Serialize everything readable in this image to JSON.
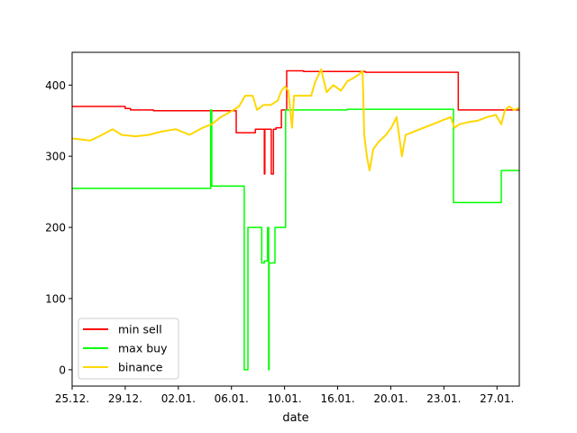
{
  "chart_data": {
    "type": "line",
    "title": "",
    "xlabel": "date",
    "ylabel": "",
    "xticks": [
      "25.12.",
      "29.12.",
      "02.01.",
      "06.01.",
      "10.01.",
      "16.01.",
      "20.01.",
      "23.01.",
      "27.01."
    ],
    "x_units": "tick index (dates are unevenly spaced; tick k shows xticks[k])",
    "xlim": [
      0,
      8.42
    ],
    "ylim": [
      -23,
      446
    ],
    "yticks": [
      0,
      100,
      200,
      300,
      400
    ],
    "grid": false,
    "legend_position": "lower-left",
    "series": [
      {
        "name": "min sell",
        "color": "#ff0000",
        "points": [
          [
            0,
            370
          ],
          [
            1.0,
            370
          ],
          [
            1.0,
            367
          ],
          [
            1.1,
            367
          ],
          [
            1.1,
            365
          ],
          [
            1.53,
            365
          ],
          [
            1.53,
            364
          ],
          [
            3.09,
            364
          ],
          [
            3.09,
            333
          ],
          [
            3.45,
            333
          ],
          [
            3.45,
            338
          ],
          [
            3.62,
            338
          ],
          [
            3.62,
            275
          ],
          [
            3.63,
            275
          ],
          [
            3.63,
            338
          ],
          [
            3.75,
            338
          ],
          [
            3.75,
            275
          ],
          [
            3.79,
            275
          ],
          [
            3.79,
            338
          ],
          [
            3.84,
            338
          ],
          [
            3.84,
            340
          ],
          [
            3.94,
            340
          ],
          [
            3.94,
            365
          ],
          [
            4.04,
            365
          ],
          [
            4.04,
            420
          ],
          [
            4.36,
            420
          ],
          [
            4.36,
            419
          ],
          [
            5.52,
            419
          ],
          [
            5.52,
            418
          ],
          [
            7.27,
            418
          ],
          [
            7.27,
            365
          ],
          [
            8.42,
            365
          ]
        ]
      },
      {
        "name": "max buy",
        "color": "#00ff00",
        "points": [
          [
            0,
            255
          ],
          [
            2.61,
            255
          ],
          [
            2.61,
            365
          ],
          [
            2.63,
            365
          ],
          [
            2.63,
            258
          ],
          [
            3.24,
            258
          ],
          [
            3.24,
            0
          ],
          [
            3.31,
            0
          ],
          [
            3.31,
            200
          ],
          [
            3.57,
            200
          ],
          [
            3.57,
            150
          ],
          [
            3.62,
            150
          ],
          [
            3.62,
            153
          ],
          [
            3.68,
            153
          ],
          [
            3.68,
            200
          ],
          [
            3.7,
            200
          ],
          [
            3.7,
            0
          ],
          [
            3.71,
            0
          ],
          [
            3.71,
            150
          ],
          [
            3.82,
            150
          ],
          [
            3.82,
            200
          ],
          [
            4.02,
            200
          ],
          [
            4.02,
            365
          ],
          [
            5.18,
            365
          ],
          [
            5.18,
            366
          ],
          [
            7.18,
            366
          ],
          [
            7.18,
            235
          ],
          [
            8.08,
            235
          ],
          [
            8.08,
            280
          ],
          [
            8.42,
            280
          ]
        ]
      },
      {
        "name": "binance",
        "color": "#ffd700",
        "points": [
          [
            0,
            325
          ],
          [
            0.34,
            322
          ],
          [
            0.51,
            328
          ],
          [
            0.76,
            338
          ],
          [
            0.93,
            330
          ],
          [
            1.19,
            328
          ],
          [
            1.44,
            330
          ],
          [
            1.7,
            335
          ],
          [
            1.95,
            338
          ],
          [
            2.21,
            330
          ],
          [
            2.46,
            340
          ],
          [
            2.63,
            345
          ],
          [
            2.8,
            355
          ],
          [
            2.97,
            362
          ],
          [
            3.14,
            370
          ],
          [
            3.26,
            385
          ],
          [
            3.4,
            385
          ],
          [
            3.48,
            365
          ],
          [
            3.6,
            372
          ],
          [
            3.74,
            372
          ],
          [
            3.87,
            378
          ],
          [
            3.94,
            392
          ],
          [
            4.01,
            398
          ],
          [
            4.07,
            392
          ],
          [
            4.14,
            340
          ],
          [
            4.18,
            385
          ],
          [
            4.33,
            385
          ],
          [
            4.5,
            385
          ],
          [
            4.58,
            405
          ],
          [
            4.69,
            422
          ],
          [
            4.79,
            390
          ],
          [
            4.92,
            400
          ],
          [
            5.06,
            392
          ],
          [
            5.18,
            405
          ],
          [
            5.3,
            410
          ],
          [
            5.4,
            415
          ],
          [
            5.47,
            420
          ],
          [
            5.5,
            330
          ],
          [
            5.55,
            300
          ],
          [
            5.6,
            280
          ],
          [
            5.67,
            310
          ],
          [
            5.77,
            320
          ],
          [
            5.91,
            330
          ],
          [
            6.01,
            340
          ],
          [
            6.11,
            355
          ],
          [
            6.21,
            300
          ],
          [
            6.28,
            330
          ],
          [
            6.45,
            335
          ],
          [
            6.62,
            340
          ],
          [
            6.79,
            345
          ],
          [
            6.96,
            350
          ],
          [
            7.13,
            355
          ],
          [
            7.2,
            340
          ],
          [
            7.3,
            345
          ],
          [
            7.47,
            348
          ],
          [
            7.64,
            350
          ],
          [
            7.81,
            355
          ],
          [
            7.98,
            358
          ],
          [
            8.08,
            345
          ],
          [
            8.15,
            365
          ],
          [
            8.23,
            370
          ],
          [
            8.32,
            365
          ],
          [
            8.42,
            368
          ]
        ]
      }
    ]
  }
}
